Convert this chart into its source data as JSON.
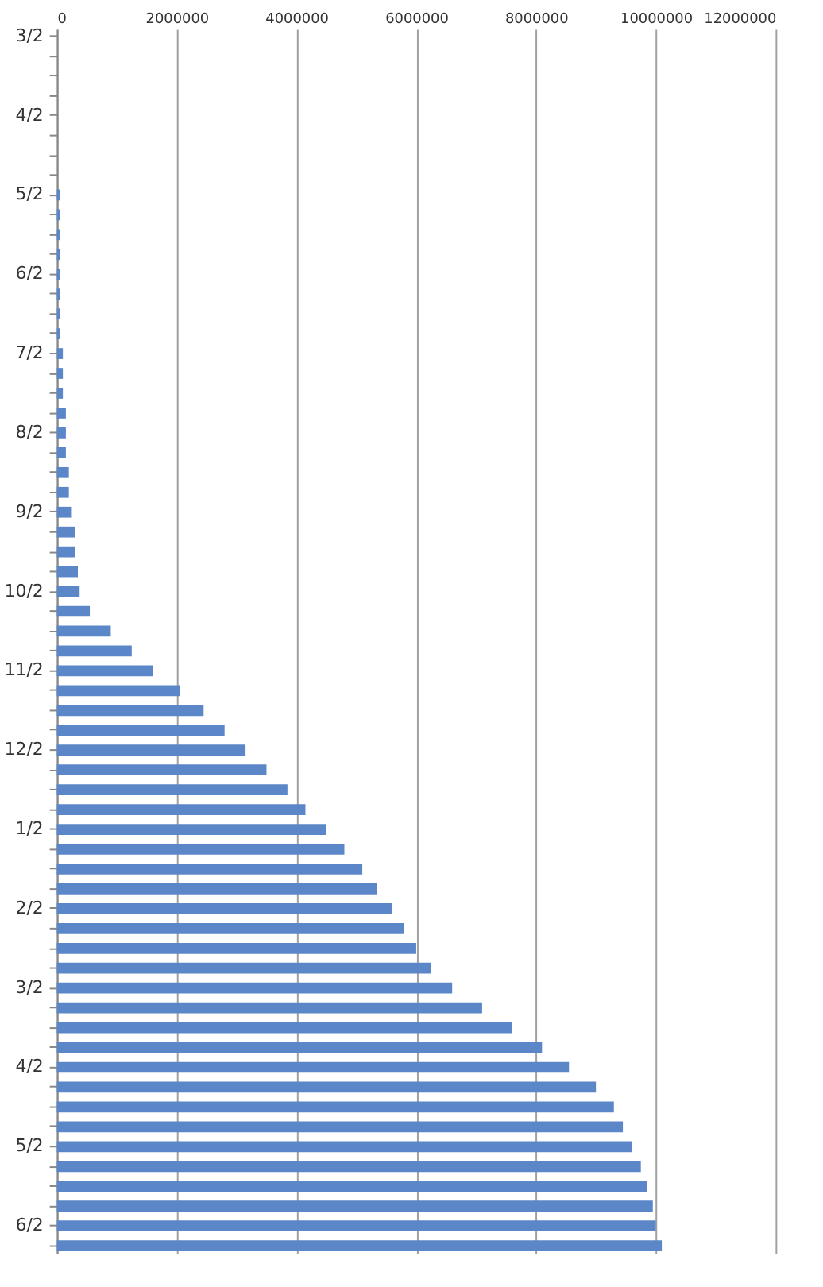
{
  "chart_data": {
    "type": "bar",
    "orientation": "horizontal",
    "color": "#5b87c9",
    "categories": [
      "3/2",
      null,
      null,
      null,
      "4/2",
      null,
      null,
      null,
      "5/2",
      null,
      null,
      null,
      "6/2",
      null,
      null,
      null,
      "7/2",
      null,
      null,
      null,
      "8/2",
      null,
      null,
      null,
      "9/2",
      null,
      null,
      null,
      "10/2",
      null,
      null,
      null,
      "11/2",
      null,
      null,
      null,
      "12/2",
      null,
      null,
      null,
      "1/2",
      null,
      null,
      null,
      "2/2",
      null,
      null,
      null,
      "3/2",
      null,
      null,
      null,
      "4/2",
      null,
      null,
      null,
      "5/2",
      null,
      null,
      null,
      "6/2",
      null
    ],
    "values": [
      0,
      0,
      0,
      0,
      0,
      0,
      0,
      0,
      50000,
      50000,
      50000,
      50000,
      50000,
      50000,
      50000,
      50000,
      100000,
      100000,
      100000,
      150000,
      150000,
      150000,
      200000,
      200000,
      250000,
      300000,
      300000,
      350000,
      380000,
      550000,
      900000,
      1250000,
      1600000,
      2050000,
      2450000,
      2800000,
      3150000,
      3500000,
      3850000,
      4150000,
      4500000,
      4800000,
      5100000,
      5350000,
      5600000,
      5800000,
      6000000,
      6250000,
      6600000,
      7100000,
      7600000,
      8100000,
      8550000,
      9000000,
      9300000,
      9450000,
      9600000,
      9750000,
      9850000,
      9950000,
      10000000,
      10100000
    ],
    "xlim": [
      0,
      12000000
    ],
    "xticks": [
      0,
      2000000,
      4000000,
      6000000,
      8000000,
      10000000,
      12000000
    ],
    "grid": "x"
  }
}
